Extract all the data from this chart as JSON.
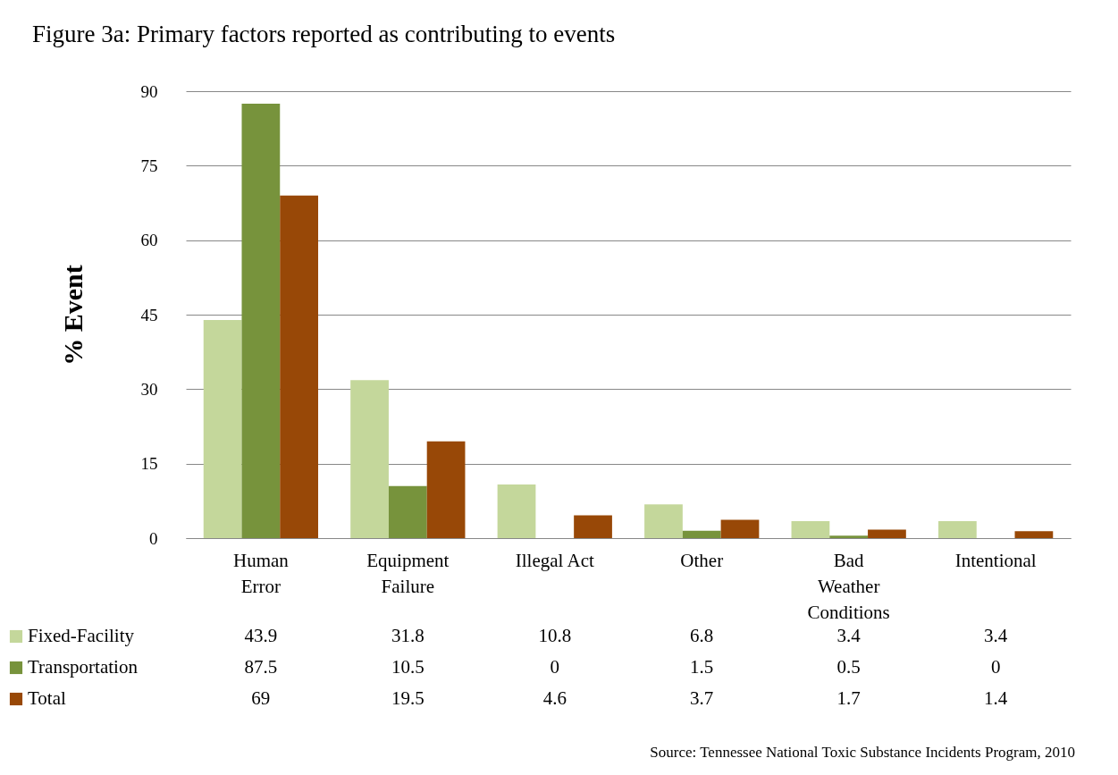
{
  "chart_data": {
    "type": "bar",
    "title": "Figure 3a: Primary factors reported as contributing to events",
    "ylabel": "% Event",
    "categories": [
      "Human\nError",
      "Equipment\nFailure",
      "Illegal Act",
      "Other",
      "Bad\nWeather\nConditions",
      "Intentional"
    ],
    "series": [
      {
        "name": "Fixed-Facility",
        "color": "#c4d79b",
        "values": [
          43.9,
          31.8,
          10.8,
          6.8,
          3.4,
          3.4
        ]
      },
      {
        "name": "Transportation",
        "color": "#77933c",
        "values": [
          87.5,
          10.5,
          0,
          1.5,
          0.5,
          0
        ]
      },
      {
        "name": "Total",
        "color": "#984807",
        "values": [
          69,
          19.5,
          4.6,
          3.7,
          1.7,
          1.4
        ]
      }
    ],
    "ylim": [
      0,
      90
    ],
    "yticks": [
      0,
      15,
      30,
      45,
      60,
      75,
      90
    ],
    "grid": "y",
    "legend": "bottom",
    "data_labels": true,
    "annotations": [
      "Source: Tennessee National Toxic Substance Incidents Program, 2010"
    ]
  }
}
